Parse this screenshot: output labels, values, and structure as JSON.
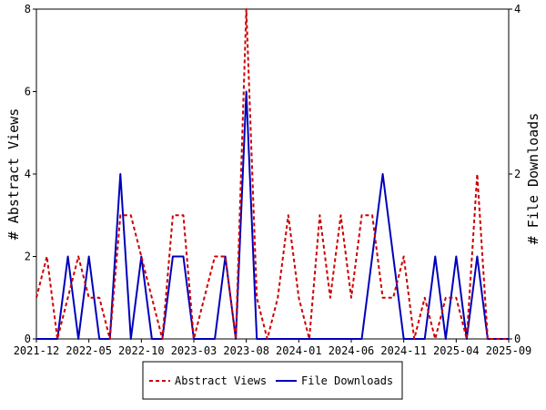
{
  "chart_data": {
    "type": "line",
    "x_months": [
      "2021-12",
      "2022-01",
      "2022-02",
      "2022-03",
      "2022-04",
      "2022-05",
      "2022-06",
      "2022-07",
      "2022-08",
      "2022-09",
      "2022-10",
      "2022-11",
      "2022-12",
      "2023-01",
      "2023-02",
      "2023-03",
      "2023-04",
      "2023-05",
      "2023-06",
      "2023-07",
      "2023-08",
      "2023-09",
      "2023-10",
      "2023-11",
      "2023-12",
      "2024-01",
      "2024-02",
      "2024-03",
      "2024-04",
      "2024-05",
      "2024-06",
      "2024-07",
      "2024-08",
      "2024-09",
      "2024-10",
      "2024-11",
      "2024-12",
      "2025-01",
      "2025-02",
      "2025-03",
      "2025-04",
      "2025-05",
      "2025-06",
      "2025-07",
      "2025-08",
      "2025-09"
    ],
    "xtick_labels": [
      "2021-12",
      "2022-05",
      "2022-10",
      "2023-03",
      "2023-08",
      "2024-01",
      "2024-06",
      "2024-11",
      "2025-04",
      "2025-09"
    ],
    "ylabel_left": "# Abstract Views",
    "ylabel_right": "# File Downloads",
    "ylim_left": [
      0,
      8
    ],
    "ylim_right": [
      0,
      4
    ],
    "yticks_left": [
      "0",
      "2",
      "4",
      "6",
      "8"
    ],
    "yticks_right": [
      "0",
      "2",
      "4"
    ],
    "legend_position": "bottom-center",
    "grid": false,
    "series": [
      {
        "name": "Abstract Views",
        "axis": "left",
        "color": "#cc0000",
        "dash": true,
        "values": [
          1,
          2,
          0,
          1,
          2,
          1,
          1,
          0,
          3,
          3,
          2,
          1,
          0,
          3,
          3,
          0,
          1,
          2,
          2,
          0,
          8,
          1,
          0,
          1,
          3,
          1,
          0,
          3,
          1,
          3,
          1,
          3,
          3,
          1,
          1,
          2,
          0,
          1,
          0,
          1,
          1,
          0,
          4,
          0,
          0,
          0
        ]
      },
      {
        "name": "File Downloads",
        "axis": "right",
        "color": "#0000bb",
        "dash": false,
        "values": [
          0,
          0,
          0,
          1,
          0,
          1,
          0,
          0,
          2,
          0,
          1,
          0,
          0,
          1,
          1,
          0,
          0,
          0,
          1,
          0,
          3,
          0,
          0,
          0,
          0,
          0,
          0,
          0,
          0,
          0,
          0,
          0,
          1,
          2,
          1,
          0,
          0,
          0,
          1,
          0,
          1,
          0,
          1,
          0,
          0,
          0
        ]
      }
    ]
  }
}
